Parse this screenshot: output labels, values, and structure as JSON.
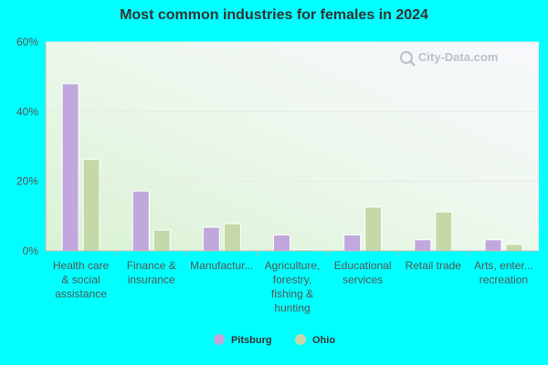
{
  "chart_data": {
    "type": "bar",
    "title": "Most common industries for females in 2024",
    "categories": [
      [
        "Health care",
        "& social",
        "assistance"
      ],
      [
        "Finance &",
        "insurance"
      ],
      [
        "Manufactur..."
      ],
      [
        "Agriculture,",
        "forestry,",
        "fishing &",
        "hunting"
      ],
      [
        "Educational",
        "services"
      ],
      [
        "Retail trade"
      ],
      [
        "Arts, enter...",
        "recreation"
      ]
    ],
    "series": [
      {
        "name": "Pitsburg",
        "color": "#c0a8dc",
        "values": [
          48.0,
          17.2,
          6.8,
          4.6,
          4.6,
          3.2,
          3.2
        ]
      },
      {
        "name": "Ohio",
        "color": "#c5d9a8",
        "values": [
          26.3,
          6.0,
          7.8,
          0.4,
          12.6,
          11.2,
          1.9
        ]
      }
    ],
    "ylim": [
      0,
      60
    ],
    "yticks": [
      0,
      20,
      40,
      60
    ],
    "ytick_labels": [
      "0%",
      "20%",
      "40%",
      "60%"
    ],
    "grid": true,
    "legend": "bottom-center",
    "watermark": "City-Data.com"
  }
}
